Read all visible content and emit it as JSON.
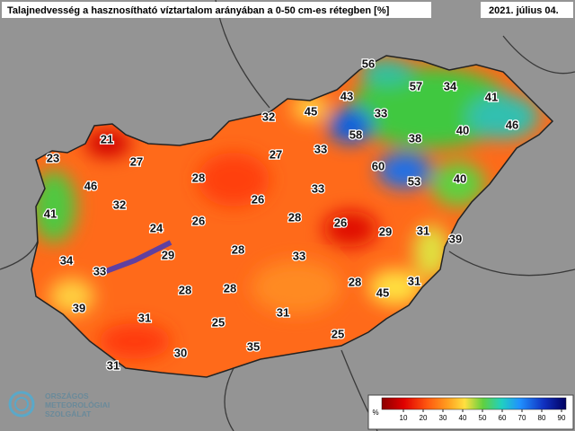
{
  "header": {
    "title": "Talajnedvesség a hasznosítható víztartalom arányában a 0-50 cm-es rétegben [%]",
    "date": "2021. július 04."
  },
  "stations": [
    56,
    57,
    34,
    41,
    43,
    45,
    33,
    32,
    46,
    40,
    38,
    58,
    21,
    33,
    27,
    27,
    60,
    23,
    53,
    40,
    28,
    46,
    33,
    26,
    32,
    26,
    24,
    28,
    26,
    29,
    31,
    41,
    39,
    29,
    28,
    33,
    34,
    33,
    28,
    31,
    45,
    28,
    28,
    39,
    31,
    31,
    25,
    25,
    35,
    30,
    31
  ],
  "legend": {
    "unit": "%",
    "ticks": [
      10,
      20,
      30,
      40,
      50,
      60,
      70,
      80,
      90
    ]
  },
  "logo": {
    "line1": "ORSZÁGOS",
    "line2": "METEOROLÓGIAI",
    "line3": "SZOLGÁLAT"
  }
}
